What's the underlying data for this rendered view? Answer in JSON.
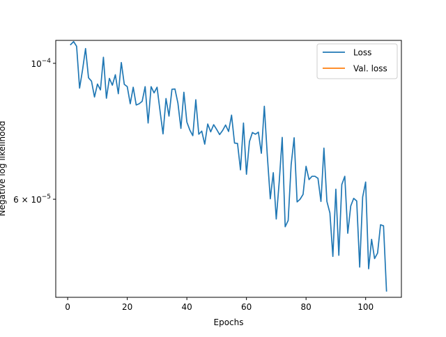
{
  "chart_data": {
    "type": "line",
    "xlabel": "Epochs",
    "ylabel": "Negative log likelihood",
    "xlim": [
      -4,
      112
    ],
    "ylim": [
      4.15e-05,
      0.000109
    ],
    "yscale": "log",
    "grid": false,
    "legend_position": "top-right",
    "x_ticks": [
      0,
      20,
      40,
      60,
      80,
      100
    ],
    "x_tick_labels": [
      "0",
      "20",
      "40",
      "60",
      "80",
      "100"
    ],
    "y_ticks": [
      0.0001,
      6e-05
    ],
    "y_tick_labels": [
      {
        "base": "10",
        "exp": "−4"
      },
      {
        "base": "6 × 10",
        "exp": "−5"
      }
    ],
    "series": [
      {
        "name": "Loss",
        "color": "#1f77b4",
        "x": [
          1,
          2,
          3,
          4,
          5,
          6,
          7,
          8,
          9,
          10,
          11,
          12,
          13,
          14,
          15,
          16,
          17,
          18,
          19,
          20,
          21,
          22,
          23,
          24,
          25,
          26,
          27,
          28,
          29,
          30,
          31,
          32,
          33,
          34,
          35,
          36,
          37,
          38,
          39,
          40,
          41,
          42,
          43,
          44,
          45,
          46,
          47,
          48,
          49,
          50,
          51,
          52,
          53,
          54,
          55,
          56,
          57,
          58,
          59,
          60,
          61,
          62,
          63,
          64,
          65,
          66,
          67,
          68,
          69,
          70,
          71,
          72,
          73,
          74,
          75,
          76,
          77,
          78,
          79,
          80,
          81,
          82,
          83,
          84,
          85,
          86,
          87,
          88,
          89,
          90,
          91,
          92,
          93,
          94,
          95,
          96,
          97,
          98,
          99,
          100,
          101,
          102,
          103,
          104,
          105,
          106,
          107
        ],
        "y": [
          0.0001073,
          0.0001085,
          0.0001066,
          9.11e-05,
          9.76e-05,
          0.0001057,
          9.47e-05,
          9.35e-05,
          8.81e-05,
          9.25e-05,
          9.05e-05,
          0.0001023,
          8.77e-05,
          9.45e-05,
          9.21e-05,
          9.58e-05,
          8.92e-05,
          0.0001003,
          9.24e-05,
          9.16e-05,
          8.59e-05,
          9.14e-05,
          8.55e-05,
          8.59e-05,
          8.67e-05,
          9.16e-05,
          7.99e-05,
          9.16e-05,
          8.95e-05,
          9.14e-05,
          8.36e-05,
          7.67e-05,
          8.76e-05,
          8.2e-05,
          9.07e-05,
          9.08e-05,
          8.61e-05,
          7.83e-05,
          8.97e-05,
          8.02e-05,
          7.78e-05,
          7.62e-05,
          8.72e-05,
          7.66e-05,
          7.75e-05,
          7.38e-05,
          7.96e-05,
          7.73e-05,
          7.94e-05,
          7.8e-05,
          7.65e-05,
          7.77e-05,
          7.93e-05,
          7.74e-05,
          8.23e-05,
          7.41e-05,
          7.4e-05,
          6.7e-05,
          7.99e-05,
          6.59e-05,
          7.45e-05,
          7.71e-05,
          7.66e-05,
          7.72e-05,
          7.13e-05,
          8.51e-05,
          7.07e-05,
          6.01e-05,
          6.63e-05,
          5.57e-05,
          6.41e-05,
          7.57e-05,
          5.41e-05,
          5.54e-05,
          6.83e-05,
          7.56e-05,
          5.94e-05,
          6e-05,
          6.11e-05,
          6.79e-05,
          6.46e-05,
          6.54e-05,
          6.54e-05,
          6.49e-05,
          5.95e-05,
          7.27e-05,
          5.95e-05,
          5.7e-05,
          4.84e-05,
          6.23e-05,
          4.86e-05,
          6.34e-05,
          6.54e-05,
          5.28e-05,
          5.85e-05,
          6.02e-05,
          5.96e-05,
          4.65e-05,
          6.05e-05,
          6.4e-05,
          4.62e-05,
          5.16e-05,
          4.8e-05,
          4.9e-05,
          5.45e-05,
          5.43e-05,
          4.25e-05
        ]
      },
      {
        "name": "Val. loss",
        "color": "#ff7f0e",
        "x": [],
        "y": []
      }
    ]
  }
}
